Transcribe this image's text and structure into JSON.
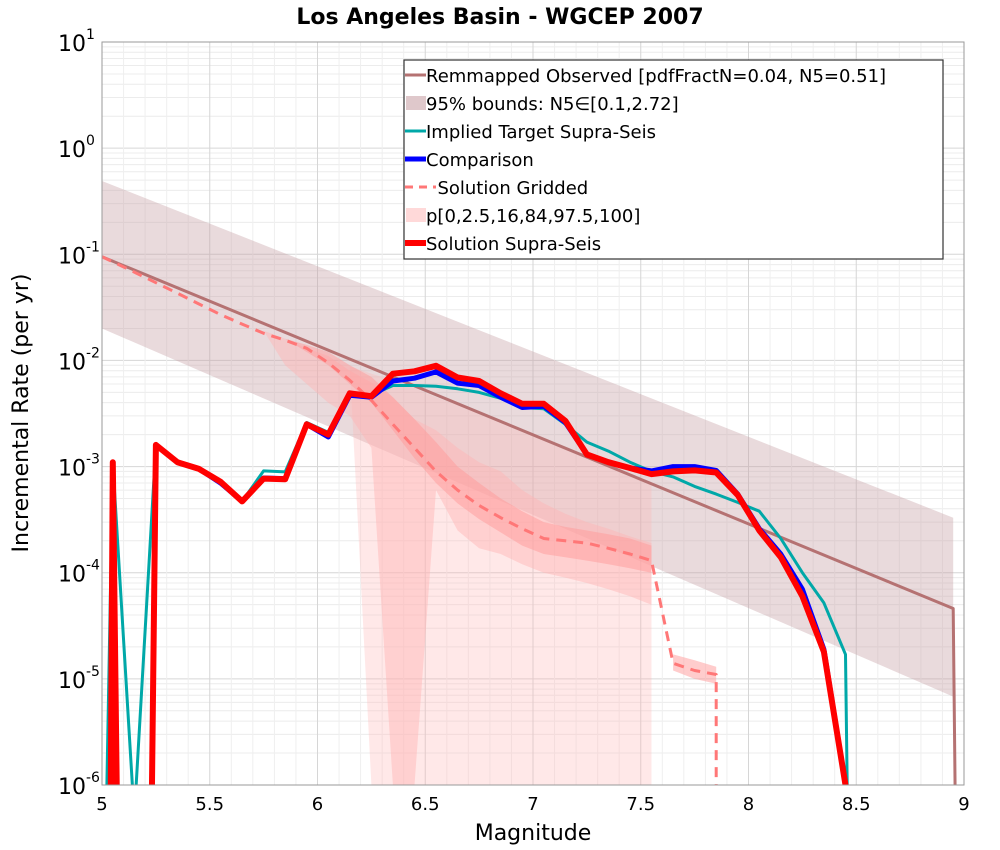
{
  "chart_data": {
    "type": "line",
    "title": "Los Angeles Basin - WGCEP 2007",
    "xlabel": "Magnitude",
    "ylabel": "Incremental Rate (per yr)",
    "xlim": [
      5,
      9
    ],
    "ylim": [
      1e-06,
      10
    ],
    "yscale": "log",
    "grid": true,
    "legend_position": "top-right",
    "x_ticks": [
      "5",
      "5.5",
      "6",
      "6.5",
      "7",
      "7.5",
      "8",
      "8.5",
      "9"
    ],
    "y_ticks": [
      {
        "base": "10",
        "exp": "-6"
      },
      {
        "base": "10",
        "exp": "-5"
      },
      {
        "base": "10",
        "exp": "-4"
      },
      {
        "base": "10",
        "exp": "-3"
      },
      {
        "base": "10",
        "exp": "-2"
      },
      {
        "base": "10",
        "exp": "-1"
      },
      {
        "base": "10",
        "exp": "0"
      },
      {
        "base": "10",
        "exp": "1"
      }
    ],
    "bands": [
      {
        "label": "95% bounds: N5∈[0.1,2.72]",
        "color": "#c9a3a8",
        "opacity": 0.4,
        "x": [
          5.0,
          8.95
        ],
        "lower": [
          0.02,
          6.8e-06
        ],
        "upper": [
          0.49,
          0.00033
        ]
      },
      {
        "label": "p[0,2.5,16,84,97.5,100]",
        "color": "#ffb3b3",
        "opacity": 0.3,
        "x": [
          5.0,
          5.05,
          5.15,
          5.25,
          5.35,
          5.45,
          5.55,
          5.65,
          5.75,
          5.85,
          5.95,
          6.05,
          6.15,
          6.25,
          6.35,
          6.45,
          6.55,
          6.65,
          6.75,
          6.85,
          6.95,
          7.05,
          7.15,
          7.25,
          7.35,
          7.45,
          7.55
        ],
        "lower": [
          0.1,
          0.088,
          0.07,
          0.056,
          0.045,
          0.036,
          0.029,
          0.023,
          0.019,
          0.016,
          0.013,
          0.011,
          0.0088,
          1e-06,
          1e-06,
          1e-06,
          1e-06,
          1e-06,
          1e-06,
          1e-06,
          1e-06,
          1e-06,
          1e-06,
          1e-06,
          1e-06,
          1e-06,
          1e-06
        ],
        "upper": [
          0.1,
          0.088,
          0.07,
          0.056,
          0.045,
          0.036,
          0.029,
          0.023,
          0.019,
          0.016,
          0.013,
          0.011,
          0.0088,
          0.0075,
          0.0065,
          0.0055,
          0.0045,
          0.0038,
          0.0032,
          0.0027,
          0.0022,
          0.0018,
          0.0015,
          0.0012,
          0.001,
          0.00085,
          0.0007
        ]
      },
      {
        "label": "",
        "color": "#ffb3b3",
        "opacity": 0.45,
        "x": [
          5.0,
          5.05,
          5.15,
          5.25,
          5.35,
          5.45,
          5.55,
          5.65,
          5.75,
          5.85,
          5.95,
          6.05,
          6.15,
          6.25,
          6.35,
          6.45,
          6.55,
          6.65,
          6.75,
          6.85,
          6.95,
          7.05,
          7.15,
          7.25,
          7.35,
          7.45,
          7.55
        ],
        "lower": [
          0.1,
          0.088,
          0.07,
          0.056,
          0.045,
          0.036,
          0.029,
          0.023,
          0.019,
          0.009,
          0.006,
          0.004,
          0.003,
          0.0015,
          1e-06,
          1e-06,
          0.0006,
          0.00025,
          0.00017,
          0.00015,
          0.00012,
          0.0001,
          9e-05,
          8e-05,
          7e-05,
          6e-05,
          5e-05
        ],
        "upper": [
          0.1,
          0.088,
          0.07,
          0.056,
          0.045,
          0.036,
          0.029,
          0.023,
          0.019,
          0.016,
          0.013,
          0.011,
          0.008,
          0.0062,
          0.0045,
          0.0028,
          0.0022,
          0.0015,
          0.0011,
          0.0009,
          0.0006,
          0.00045,
          0.00036,
          0.0003,
          0.00026,
          0.00022,
          0.00019
        ]
      },
      {
        "label": "",
        "color": "#ff9a9a",
        "opacity": 0.5,
        "x": [
          5.65,
          5.75,
          5.85,
          5.95,
          6.05,
          6.15,
          6.25,
          6.35,
          6.45,
          6.55,
          6.65,
          6.75,
          6.85,
          6.95,
          7.05,
          7.15,
          7.25,
          7.35,
          7.45,
          7.55
        ],
        "lower": [
          0.023,
          0.019,
          0.016,
          0.012,
          0.009,
          0.006,
          0.004,
          0.0022,
          0.0012,
          0.0007,
          0.00045,
          0.00032,
          0.00024,
          0.00018,
          0.00015,
          0.00014,
          0.00013,
          0.00012,
          0.00011,
          0.0001
        ],
        "upper": [
          0.023,
          0.019,
          0.016,
          0.014,
          0.012,
          0.009,
          0.007,
          0.0045,
          0.0028,
          0.0017,
          0.001,
          0.0007,
          0.0005,
          0.00038,
          0.0003,
          0.00027,
          0.00025,
          0.00023,
          0.00021,
          0.00018
        ]
      },
      {
        "label": "",
        "color": "#ff9a9a",
        "opacity": 0.5,
        "x": [
          7.65,
          7.75,
          7.85
        ],
        "lower": [
          1.2e-05,
          1e-05,
          9e-06
        ],
        "upper": [
          1.7e-05,
          1.5e-05,
          1.3e-05
        ]
      }
    ],
    "series": [
      {
        "name": "Remmapped Observed [pdfFractN=0.04, N5=0.51]",
        "color": "#b57272",
        "width": 3,
        "dash": "",
        "x": [
          5.0,
          8.95,
          8.96
        ],
        "y": [
          0.095,
          4.6e-05,
          5e-07
        ]
      },
      {
        "name": "Implied Target Supra-Seis",
        "color": "#00a8a8",
        "width": 3,
        "dash": "",
        "x": [
          5.02,
          5.05,
          5.15,
          5.25,
          5.35,
          5.45,
          5.55,
          5.65,
          5.75,
          5.85,
          5.95,
          6.05,
          6.15,
          6.25,
          6.35,
          6.45,
          6.55,
          6.65,
          6.75,
          6.85,
          6.95,
          7.05,
          7.15,
          7.25,
          7.35,
          7.45,
          7.55,
          7.65,
          7.75,
          7.85,
          7.95,
          8.05,
          8.15,
          8.25,
          8.35,
          8.45,
          8.46
        ],
        "y": [
          5e-07,
          0.0011,
          5e-07,
          0.0016,
          0.0011,
          0.00095,
          0.0007,
          0.00047,
          0.00091,
          0.00089,
          0.0026,
          0.0021,
          0.0046,
          0.0047,
          0.0058,
          0.0058,
          0.0057,
          0.0054,
          0.005,
          0.0044,
          0.0036,
          0.0035,
          0.0025,
          0.0017,
          0.0014,
          0.0011,
          0.0009,
          0.0008,
          0.00065,
          0.00055,
          0.00046,
          0.00038,
          0.00021,
          0.0001,
          5.2e-05,
          1.7e-05,
          5e-07
        ]
      },
      {
        "name": "Comparison",
        "color": "#0000ff",
        "width": 5,
        "dash": "",
        "x": [
          5.04,
          5.05,
          5.07,
          5.23,
          5.25,
          5.35,
          5.45,
          5.55,
          5.65,
          5.75,
          5.85,
          5.95,
          6.05,
          6.15,
          6.25,
          6.35,
          6.45,
          6.55,
          6.65,
          6.75,
          6.85,
          6.95,
          7.05,
          7.15,
          7.25,
          7.35,
          7.45,
          7.55,
          7.65,
          7.75,
          7.85,
          7.95,
          8.05,
          8.15,
          8.25,
          8.35,
          8.45
        ],
        "y": [
          5e-07,
          0.0011,
          5e-07,
          5e-07,
          0.0016,
          0.0011,
          0.00095,
          0.0007,
          0.00047,
          0.00078,
          0.00077,
          0.0025,
          0.0019,
          0.0047,
          0.0045,
          0.0064,
          0.0068,
          0.0078,
          0.0061,
          0.0058,
          0.0045,
          0.0036,
          0.0037,
          0.0026,
          0.0013,
          0.0011,
          0.00097,
          0.00091,
          0.001,
          0.001,
          0.00092,
          0.00055,
          0.00026,
          0.00015,
          7e-05,
          1.9e-05,
          1e-06
        ]
      },
      {
        "name": "Solution Gridded",
        "color": "#ff7777",
        "width": 3,
        "dash": "10,7",
        "x": [
          5.0,
          5.05,
          5.15,
          5.25,
          5.35,
          5.45,
          5.55,
          5.65,
          5.75,
          5.85,
          5.95,
          6.05,
          6.15,
          6.25,
          6.35,
          6.45,
          6.55,
          6.65,
          6.75,
          6.85,
          6.95,
          7.05,
          7.15,
          7.25,
          7.35,
          7.45,
          7.55,
          7.65,
          7.75,
          7.85,
          7.85
        ],
        "y": [
          0.095,
          0.085,
          0.068,
          0.054,
          0.043,
          0.034,
          0.027,
          0.022,
          0.018,
          0.0155,
          0.013,
          0.0095,
          0.0065,
          0.0042,
          0.0025,
          0.0015,
          0.0009,
          0.0006,
          0.00043,
          0.00033,
          0.00026,
          0.00021,
          0.0002,
          0.00019,
          0.00017,
          0.00015,
          0.00013,
          1.4e-05,
          1.2e-05,
          1.1e-05,
          5e-07
        ]
      },
      {
        "name": "Solution Supra-Seis",
        "color": "#ff0000",
        "width": 6,
        "dash": "",
        "x": [
          5.04,
          5.05,
          5.07,
          5.23,
          5.25,
          5.35,
          5.45,
          5.55,
          5.65,
          5.75,
          5.85,
          5.95,
          6.05,
          6.15,
          6.25,
          6.35,
          6.45,
          6.55,
          6.65,
          6.75,
          6.85,
          6.95,
          7.05,
          7.15,
          7.25,
          7.35,
          7.45,
          7.55,
          7.65,
          7.75,
          7.85,
          7.95,
          8.05,
          8.15,
          8.25,
          8.35,
          8.45
        ],
        "y": [
          5e-07,
          0.0011,
          5e-07,
          5e-07,
          0.0016,
          0.0011,
          0.00095,
          0.00072,
          0.00047,
          0.00077,
          0.00076,
          0.0025,
          0.002,
          0.0049,
          0.0046,
          0.0075,
          0.0079,
          0.0089,
          0.0069,
          0.0064,
          0.0049,
          0.0039,
          0.0039,
          0.0027,
          0.0013,
          0.0011,
          0.00097,
          0.00085,
          0.0009,
          0.00092,
          0.00088,
          0.00054,
          0.00025,
          0.00014,
          6e-05,
          1.8e-05,
          1e-06
        ]
      }
    ],
    "legend": [
      {
        "label": "Remmapped Observed [pdfFractN=0.04, N5=0.51]",
        "kind": "line",
        "color": "#b57272",
        "width": 3,
        "dash": ""
      },
      {
        "label": "95% bounds: N5∈[0.1,2.72]",
        "kind": "band",
        "color": "#c9a3a8",
        "opacity": 0.6
      },
      {
        "label": "Implied Target Supra-Seis",
        "kind": "line",
        "color": "#00a8a8",
        "width": 3,
        "dash": ""
      },
      {
        "label": "Comparison",
        "kind": "line",
        "color": "#0000ff",
        "width": 5,
        "dash": ""
      },
      {
        "label": " Solution Gridded",
        "kind": "line",
        "color": "#ff7777",
        "width": 3,
        "dash": "10,7"
      },
      {
        "label": "p[0,2.5,16,84,97.5,100]",
        "kind": "band",
        "color": "#ffd0d0",
        "opacity": 0.8
      },
      {
        "label": "Solution Supra-Seis",
        "kind": "line",
        "color": "#ff0000",
        "width": 6,
        "dash": ""
      }
    ]
  }
}
